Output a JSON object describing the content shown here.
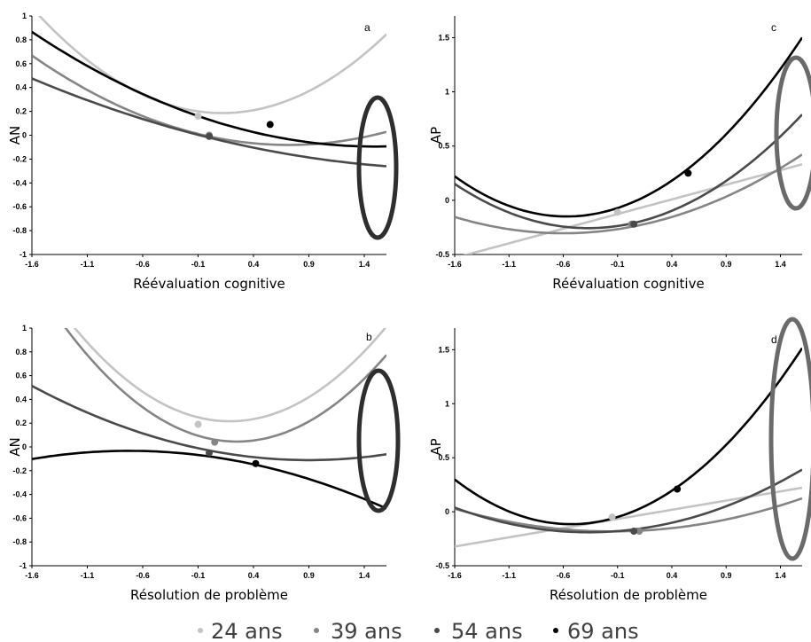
{
  "colors": {
    "24 ans": "#c3c3c3",
    "39 ans": "#858585",
    "54 ans": "#4a4a4a",
    "69 ans": "#000000",
    "ellipse_dark": "#2e2e2e",
    "ellipse_gray": "#6a6a6a"
  },
  "legend": [
    "24 ans",
    "39 ans",
    "54 ans",
    "69 ans"
  ],
  "chart_data": [
    {
      "type": "line",
      "panel": "a",
      "xlabel": "Réévaluation cognitive",
      "ylabel": "AN",
      "xticks": [
        "-1.6",
        "-1.1",
        "-0.6",
        "-0.1",
        "0.4",
        "0.9",
        "1.4"
      ],
      "xlim": [
        -1.6,
        1.6
      ],
      "ylim": [
        -1,
        1
      ],
      "yticks": [
        "-1",
        "-0.8",
        "-0.6",
        "-0.4",
        "-0.2",
        "0",
        "0.2",
        "0.4",
        "0.6",
        "0.8",
        "1"
      ],
      "grid": false,
      "highlight": "ellipse around x = 1.5",
      "series": [
        {
          "name": "24 ans",
          "coef": [
            0.19,
            -0.07,
            0.3
          ],
          "marker": [
            -0.1,
            0.16
          ]
        },
        {
          "name": "39 ans",
          "coef": [
            -0.01,
            -0.2,
            0.14
          ],
          "marker": [
            0.0,
            0.0
          ]
        },
        {
          "name": "54 ans",
          "coef": [
            -0.02,
            -0.23,
            0.05
          ],
          "marker": [
            0.0,
            -0.01
          ]
        },
        {
          "name": "69 ans",
          "coef": [
            0.13,
            -0.3,
            0.1
          ],
          "marker": [
            0.55,
            0.09
          ]
        }
      ]
    },
    {
      "type": "line",
      "panel": "b",
      "xlabel": "Résolution de problème",
      "ylabel": "AN",
      "xticks": [
        "-1.6",
        "-1.1",
        "-0.6",
        "-0.1",
        "0.4",
        "0.9",
        "1.4"
      ],
      "xlim": [
        -1.6,
        1.6
      ],
      "ylim": [
        -1,
        1
      ],
      "yticks": [
        "-1",
        "-0.8",
        "-0.6",
        "-0.4",
        "-0.2",
        "0",
        "0.2",
        "0.4",
        "0.6",
        "0.8",
        "1"
      ],
      "grid": false,
      "highlight": "ellipse around x = 1.5",
      "series": [
        {
          "name": "24 ans",
          "coef": [
            0.23,
            -0.15,
            0.4
          ],
          "marker": [
            -0.1,
            0.19
          ]
        },
        {
          "name": "39 ans",
          "coef": [
            0.07,
            -0.2,
            0.4
          ],
          "marker": [
            0.05,
            0.04
          ]
        },
        {
          "name": "54 ans",
          "coef": [
            -0.03,
            -0.18,
            0.1
          ],
          "marker": [
            0.0,
            -0.05
          ]
        },
        {
          "name": "69 ans",
          "coef": [
            -0.08,
            -0.13,
            -0.09
          ],
          "marker": [
            0.42,
            -0.14
          ]
        }
      ]
    },
    {
      "type": "line",
      "panel": "c",
      "xlabel": "Réévaluation cognitive",
      "ylabel": "AP",
      "xticks": [
        "-1.6",
        "-1.1",
        "-0.6",
        "-0.1",
        "0.4",
        "0.9",
        "1.4"
      ],
      "xlim": [
        -1.6,
        1.6
      ],
      "ylim": [
        -0.5,
        1.7
      ],
      "yticks": [
        "-0.5",
        "0",
        "0.5",
        "1",
        "1.5"
      ],
      "grid": false,
      "highlight": "ellipse around x = 1.55",
      "series": [
        {
          "name": "24 ans",
          "coef": [
            -0.1,
            0.27,
            0.0
          ],
          "marker": [
            -0.1,
            -0.11
          ]
        },
        {
          "name": "39 ans",
          "coef": [
            -0.25,
            0.18,
            0.15
          ],
          "marker": [
            0.03,
            -0.22
          ]
        },
        {
          "name": "54 ans",
          "coef": [
            -0.22,
            0.2,
            0.27
          ],
          "marker": [
            0.05,
            -0.22
          ]
        },
        {
          "name": "69 ans",
          "coef": [
            -0.035,
            0.4,
            0.35
          ],
          "marker": [
            0.55,
            0.25
          ]
        }
      ]
    },
    {
      "type": "line",
      "panel": "d",
      "xlabel": "Résolution de problème",
      "ylabel": "AP",
      "xticks": [
        "-1.6",
        "-1.1",
        "-0.6",
        "-0.1",
        "0.4",
        "0.9",
        "1.4"
      ],
      "xlim": [
        -1.6,
        1.6
      ],
      "ylim": [
        -0.5,
        1.7
      ],
      "yticks": [
        "-0.5",
        "0",
        "0.5",
        "1",
        "1.5"
      ],
      "grid": false,
      "highlight": "ellipse around x = 1.55",
      "series": [
        {
          "name": "24 ans",
          "coef": [
            -0.05,
            0.17,
            0.0
          ],
          "marker": [
            -0.15,
            -0.05
          ]
        },
        {
          "name": "39 ans",
          "coef": [
            -0.18,
            0.03,
            0.1
          ],
          "marker": [
            0.1,
            -0.18
          ]
        },
        {
          "name": "54 ans",
          "coef": [
            -0.17,
            0.11,
            0.15
          ],
          "marker": [
            0.05,
            -0.18
          ]
        },
        {
          "name": "69 ans",
          "coef": [
            -0.015,
            0.38,
            0.36
          ],
          "marker": [
            0.45,
            0.21
          ]
        }
      ]
    }
  ]
}
